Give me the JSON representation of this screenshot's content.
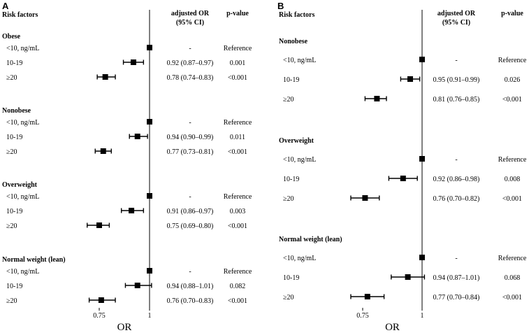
{
  "chart_data": [
    {
      "type": "forest",
      "panel": "A",
      "xlabel": "OR",
      "xticks": [
        0.75,
        1
      ],
      "xlim": [
        0.6,
        1.18
      ],
      "reference_line": 1,
      "headers": {
        "risk": "Risk factors",
        "or_line1": "adjusted OR",
        "or_line2": "(95% CI)",
        "p": "p-value"
      },
      "groups": [
        {
          "name": "Obese",
          "rows": [
            {
              "label": "<10, ng/mL",
              "or": 1.0,
              "lo": 1.0,
              "hi": 1.0,
              "or_text": "-",
              "p": "Reference"
            },
            {
              "label": "10-19",
              "or": 0.92,
              "lo": 0.87,
              "hi": 0.97,
              "or_text": "0.92 (0.87–0.97)",
              "p": "0.001"
            },
            {
              "label": "≥20",
              "or": 0.78,
              "lo": 0.74,
              "hi": 0.83,
              "or_text": "0.78 (0.74–0.83)",
              "p": "<0.001"
            }
          ]
        },
        {
          "name": "Nonobese",
          "rows": [
            {
              "label": "<10, ng/mL",
              "or": 1.0,
              "lo": 1.0,
              "hi": 1.0,
              "or_text": "-",
              "p": "Reference"
            },
            {
              "label": "10-19",
              "or": 0.94,
              "lo": 0.9,
              "hi": 0.99,
              "or_text": "0.94 (0.90–0.99)",
              "p": "0.011"
            },
            {
              "label": "≥20",
              "or": 0.77,
              "lo": 0.73,
              "hi": 0.81,
              "or_text": "0.77 (0.73–0.81)",
              "p": "<0.001"
            }
          ]
        },
        {
          "name": "Overweight",
          "rows": [
            {
              "label": "<10, ng/mL",
              "or": 1.0,
              "lo": 1.0,
              "hi": 1.0,
              "or_text": "-",
              "p": "Reference"
            },
            {
              "label": "10-19",
              "or": 0.91,
              "lo": 0.86,
              "hi": 0.97,
              "or_text": "0.91 (0.86–0.97)",
              "p": "0.003"
            },
            {
              "label": "≥20",
              "or": 0.75,
              "lo": 0.69,
              "hi": 0.8,
              "or_text": "0.75 (0.69–0.80)",
              "p": "<0.001"
            }
          ]
        },
        {
          "name": "Normal weight (lean)",
          "rows": [
            {
              "label": "<10, ng/mL",
              "or": 1.0,
              "lo": 1.0,
              "hi": 1.0,
              "or_text": "-",
              "p": "Reference"
            },
            {
              "label": "10-19",
              "or": 0.94,
              "lo": 0.88,
              "hi": 1.01,
              "or_text": "0.94 (0.88–1.01)",
              "p": "0.082"
            },
            {
              "label": "≥20",
              "or": 0.76,
              "lo": 0.7,
              "hi": 0.83,
              "or_text": "0.76 (0.70–0.83)",
              "p": "<0.001"
            }
          ]
        }
      ]
    },
    {
      "type": "forest",
      "panel": "B",
      "xlabel": "OR",
      "xticks": [
        0.75,
        1
      ],
      "xlim": [
        0.6,
        1.18
      ],
      "reference_line": 1,
      "headers": {
        "risk": "Risk factors",
        "or_line1": "adjusted OR",
        "or_line2": "(95% CI)",
        "p": "p-value"
      },
      "groups": [
        {
          "name": "Nonobese",
          "rows": [
            {
              "label": "<10, ng/mL",
              "or": 1.0,
              "lo": 1.0,
              "hi": 1.0,
              "or_text": "-",
              "p": "Reference"
            },
            {
              "label": "10-19",
              "or": 0.95,
              "lo": 0.91,
              "hi": 0.99,
              "or_text": "0.95 (0.91–0.99)",
              "p": "0.026"
            },
            {
              "label": "≥20",
              "or": 0.81,
              "lo": 0.76,
              "hi": 0.85,
              "or_text": "0.81 (0.76–0.85)",
              "p": "<0.001"
            }
          ]
        },
        {
          "name": "Overweight",
          "rows": [
            {
              "label": "<10, ng/mL",
              "or": 1.0,
              "lo": 1.0,
              "hi": 1.0,
              "or_text": "-",
              "p": "Reference"
            },
            {
              "label": "10-19",
              "or": 0.92,
              "lo": 0.86,
              "hi": 0.98,
              "or_text": "0.92 (0.86–0.98)",
              "p": "0.008"
            },
            {
              "label": "≥20",
              "or": 0.76,
              "lo": 0.7,
              "hi": 0.82,
              "or_text": "0.76 (0.70–0.82)",
              "p": "<0.001"
            }
          ]
        },
        {
          "name": "Normal weight (lean)",
          "rows": [
            {
              "label": "<10, ng/mL",
              "or": 1.0,
              "lo": 1.0,
              "hi": 1.0,
              "or_text": "-",
              "p": "Reference"
            },
            {
              "label": "10-19",
              "or": 0.94,
              "lo": 0.87,
              "hi": 1.01,
              "or_text": "0.94 (0.87–1.01)",
              "p": "0.068"
            },
            {
              "label": "≥20",
              "or": 0.77,
              "lo": 0.7,
              "hi": 0.84,
              "or_text": "0.77 (0.70–0.84)",
              "p": "<0.001"
            }
          ]
        }
      ]
    }
  ]
}
